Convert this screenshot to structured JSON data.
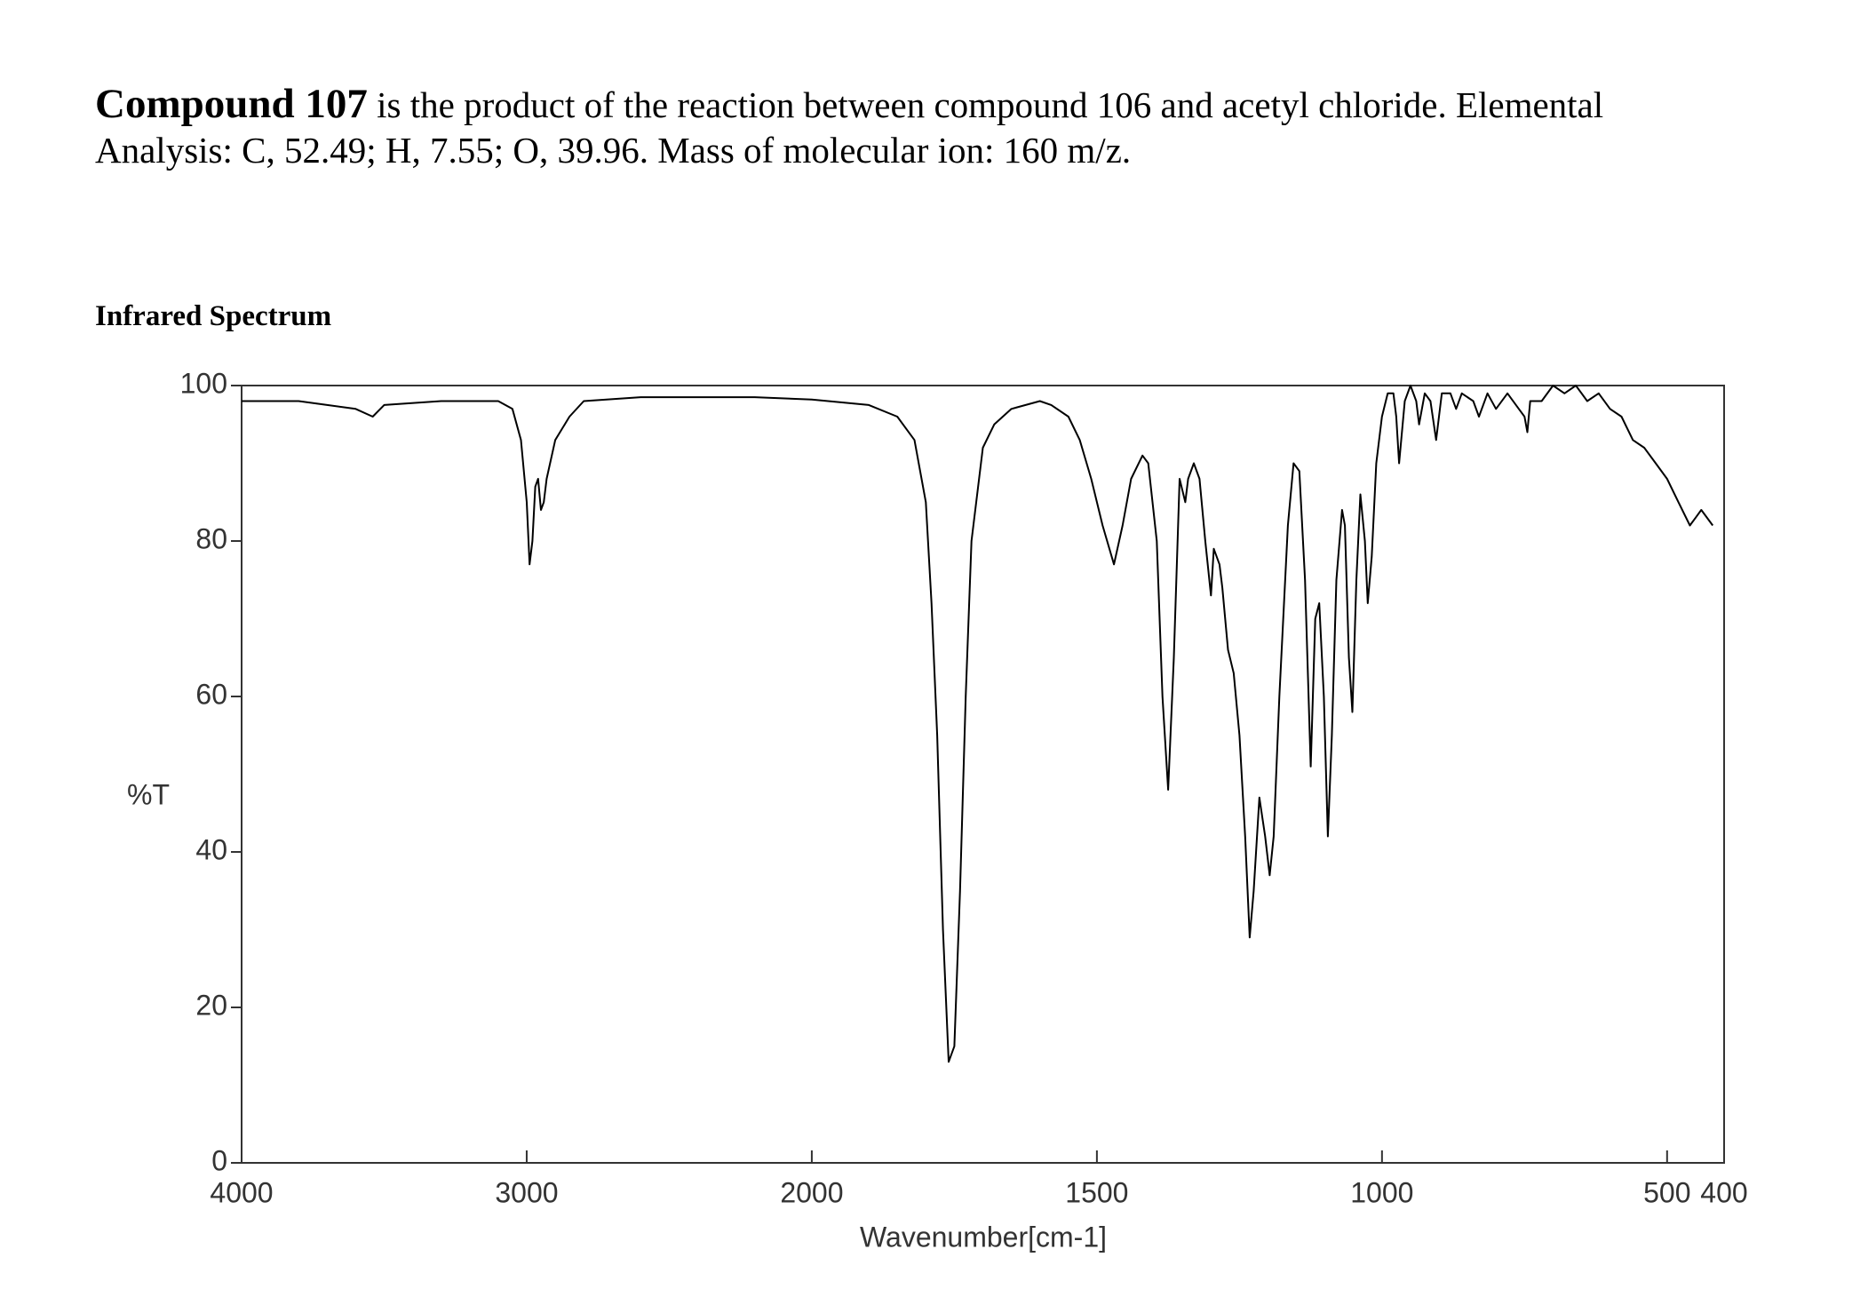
{
  "problem": {
    "compound": "Compound 107",
    "text": "is the product of the reaction between compound 106 and acetyl chloride. Elemental Analysis: C, 52.49; H, 7.55; O, 39.96. Mass of molecular ion: 160 m/z."
  },
  "section_title": "Infrared Spectrum",
  "chart_data": {
    "type": "line",
    "xlabel": "Wavenumber[cm-1]",
    "ylabel": "%T",
    "color": "#000000",
    "grid": false,
    "xlim": [
      4000,
      400
    ],
    "x_scale_break": 2000,
    "xticks": [
      4000,
      3000,
      2000,
      1500,
      1000,
      500,
      400
    ],
    "ylim": [
      0,
      100
    ],
    "yticks": [
      0,
      20,
      40,
      60,
      80,
      100
    ],
    "x": [
      4000,
      3800,
      3700,
      3600,
      3540,
      3500,
      3300,
      3100,
      3050,
      3020,
      3000,
      2990,
      2980,
      2970,
      2960,
      2950,
      2940,
      2930,
      2900,
      2850,
      2800,
      2600,
      2400,
      2200,
      2000,
      1900,
      1850,
      1820,
      1800,
      1790,
      1780,
      1770,
      1760,
      1750,
      1740,
      1730,
      1720,
      1700,
      1680,
      1650,
      1600,
      1580,
      1550,
      1530,
      1510,
      1490,
      1470,
      1455,
      1440,
      1420,
      1410,
      1395,
      1385,
      1375,
      1365,
      1355,
      1345,
      1340,
      1330,
      1320,
      1310,
      1300,
      1295,
      1285,
      1280,
      1270,
      1260,
      1250,
      1240,
      1232,
      1225,
      1215,
      1205,
      1197,
      1190,
      1180,
      1165,
      1155,
      1145,
      1135,
      1125,
      1117,
      1110,
      1102,
      1095,
      1088,
      1080,
      1070,
      1065,
      1058,
      1052,
      1045,
      1038,
      1030,
      1025,
      1018,
      1010,
      1000,
      990,
      980,
      975,
      970,
      960,
      950,
      940,
      935,
      925,
      915,
      905,
      895,
      880,
      870,
      860,
      840,
      830,
      815,
      800,
      780,
      760,
      750,
      745,
      740,
      720,
      700,
      680,
      660,
      640,
      620,
      600,
      580,
      560,
      540,
      520,
      500,
      480,
      460,
      450,
      440,
      420
    ],
    "values": [
      98,
      98,
      97.5,
      97,
      96,
      97.5,
      98,
      98,
      97,
      93,
      85,
      77,
      80,
      87,
      88,
      84,
      85,
      88,
      93,
      96,
      98,
      98.5,
      98.5,
      98.5,
      98.2,
      97.5,
      96,
      93,
      85,
      72,
      55,
      30,
      13,
      15,
      35,
      60,
      80,
      92,
      95,
      97,
      98,
      97.5,
      96,
      93,
      88,
      82,
      77,
      82,
      88,
      91,
      90,
      80,
      60,
      48,
      65,
      88,
      85,
      88,
      90,
      88,
      80,
      73,
      79,
      77,
      74,
      66,
      63,
      55,
      42,
      29,
      35,
      47,
      42,
      37,
      42,
      60,
      82,
      90,
      89,
      75,
      51,
      70,
      72,
      60,
      42,
      55,
      75,
      84,
      82,
      65,
      58,
      75,
      86,
      80,
      72,
      78,
      90,
      96,
      99,
      99,
      96,
      90,
      98,
      100,
      98,
      95,
      99,
      98,
      93,
      99,
      99,
      97,
      99,
      98,
      96,
      99,
      97,
      99,
      97,
      96,
      94,
      98,
      98,
      100,
      99,
      100,
      98,
      99,
      97,
      96,
      93,
      92,
      90,
      88,
      85,
      82,
      83,
      84,
      82
    ]
  }
}
